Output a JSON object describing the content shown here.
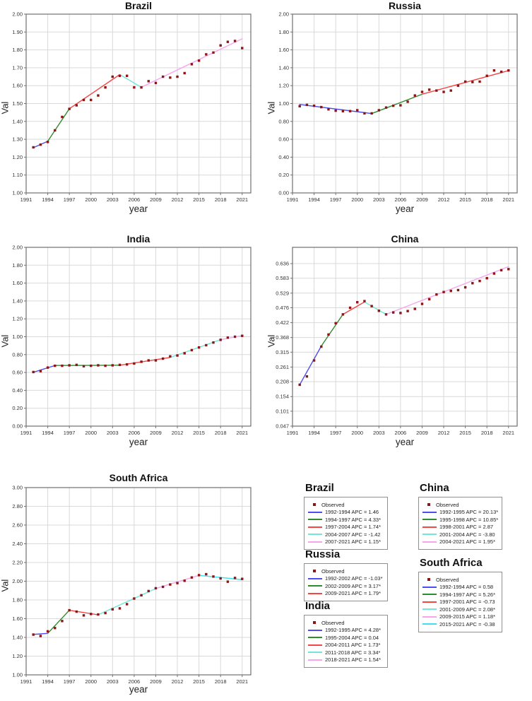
{
  "figure_title": "",
  "colors": {
    "observed": "#8e1515",
    "frame": "#707070",
    "grid": "#d9d9d9",
    "blue": "#4d4df2",
    "green": "#2e8b2e",
    "red": "#f54545",
    "turquoise": "#74e6d8",
    "pink": "#f7a6ee",
    "bright_cyan": "#3fe0f0"
  },
  "chart_data": [
    {
      "key": "brazil",
      "type": "line",
      "title": "Brazil",
      "xlabel": "year",
      "ylabel": "Val",
      "xlim": [
        1991,
        2022.2
      ],
      "ylim": [
        1.0,
        2.0
      ],
      "grid": true,
      "xticks": [
        1991,
        1994,
        1997,
        2000,
        2003,
        2006,
        2009,
        2012,
        2015,
        2018,
        2021
      ],
      "ytick_values": [
        1.0,
        1.1,
        1.2,
        1.3,
        1.4,
        1.5,
        1.6,
        1.7,
        1.8,
        1.9,
        2.0
      ],
      "ytick_labels": [
        "1.00",
        "1.10",
        "1.20",
        "1.30",
        "1.40",
        "1.50",
        "1.60",
        "1.70",
        "1.80",
        "1.90",
        "2.00"
      ],
      "observed_years": [
        1992,
        1993,
        1994,
        1995,
        1996,
        1997,
        1998,
        1999,
        2000,
        2001,
        2002,
        2003,
        2004,
        2005,
        2006,
        2007,
        2008,
        2009,
        2010,
        2011,
        2012,
        2013,
        2014,
        2015,
        2016,
        2017,
        2018,
        2019,
        2020,
        2021
      ],
      "observed_values": [
        1.255,
        1.27,
        1.285,
        1.35,
        1.425,
        1.47,
        1.49,
        1.52,
        1.52,
        1.545,
        1.59,
        1.65,
        1.655,
        1.655,
        1.59,
        1.59,
        1.625,
        1.615,
        1.65,
        1.645,
        1.65,
        1.67,
        1.72,
        1.74,
        1.775,
        1.785,
        1.825,
        1.845,
        1.85,
        1.81
      ],
      "segments": [
        {
          "label": "1992-1994 APC = 1.46",
          "color": "#4d4df2",
          "x1": 1992,
          "y1": 1.253,
          "x2": 1994,
          "y2": 1.289
        },
        {
          "label": "1994-1997 APC = 4.33*",
          "color": "#2e8b2e",
          "x1": 1994,
          "y1": 1.289,
          "x2": 1997,
          "y2": 1.471
        },
        {
          "label": "1997-2004 APC = 1.74*",
          "color": "#f54545",
          "x1": 1997,
          "y1": 1.471,
          "x2": 2004,
          "y2": 1.662
        },
        {
          "label": "2004-2007 APC = -1.42",
          "color": "#74e6d8",
          "x1": 2004,
          "y1": 1.662,
          "x2": 2007,
          "y2": 1.591
        },
        {
          "label": "2007-2021 APC = 1.15*",
          "color": "#f7a6ee",
          "x1": 2007,
          "y1": 1.591,
          "x2": 2021,
          "y2": 1.862
        }
      ]
    },
    {
      "key": "russia",
      "type": "line",
      "title": "Russia",
      "xlabel": "year",
      "ylabel": "Val",
      "xlim": [
        1991,
        2022.2
      ],
      "ylim": [
        0.0,
        2.0
      ],
      "grid": true,
      "xticks": [
        1991,
        1994,
        1997,
        2000,
        2003,
        2006,
        2009,
        2012,
        2015,
        2018,
        2021
      ],
      "ytick_values": [
        0.0,
        0.2,
        0.4,
        0.6,
        0.8,
        1.0,
        1.2,
        1.4,
        1.6,
        1.8,
        2.0
      ],
      "ytick_labels": [
        "0.00",
        "0.20",
        "0.40",
        "0.60",
        "0.80",
        "1.00",
        "1.20",
        "1.40",
        "1.60",
        "1.80",
        "2.00"
      ],
      "observed_years": [
        1992,
        1993,
        1994,
        1995,
        1996,
        1997,
        1998,
        1999,
        2000,
        2001,
        2002,
        2003,
        2004,
        2005,
        2006,
        2007,
        2008,
        2009,
        2010,
        2011,
        2012,
        2013,
        2014,
        2015,
        2016,
        2017,
        2018,
        2019,
        2020,
        2021
      ],
      "observed_values": [
        0.97,
        0.985,
        0.975,
        0.96,
        0.935,
        0.92,
        0.915,
        0.915,
        0.925,
        0.89,
        0.89,
        0.925,
        0.955,
        0.975,
        0.98,
        1.02,
        1.09,
        1.13,
        1.155,
        1.145,
        1.13,
        1.145,
        1.2,
        1.245,
        1.24,
        1.245,
        1.31,
        1.37,
        1.355,
        1.37
      ],
      "segments": [
        {
          "label": "1992-2002 APC = -1.03*",
          "color": "#4d4df2",
          "x1": 1992,
          "y1": 0.99,
          "x2": 2002,
          "y2": 0.888
        },
        {
          "label": "2002-2009 APC = 3.17*",
          "color": "#2e8b2e",
          "x1": 2002,
          "y1": 0.888,
          "x2": 2009,
          "y2": 1.104
        },
        {
          "label": "2009-2021 APC = 1.79*",
          "color": "#f54545",
          "x1": 2009,
          "y1": 1.104,
          "x2": 2021,
          "y2": 1.368
        }
      ]
    },
    {
      "key": "india",
      "type": "line",
      "title": "India",
      "xlabel": "year",
      "ylabel": "Val",
      "xlim": [
        1991,
        2022.2
      ],
      "ylim": [
        0.0,
        2.0
      ],
      "grid": true,
      "xticks": [
        1991,
        1994,
        1997,
        2000,
        2003,
        2006,
        2009,
        2012,
        2015,
        2018,
        2021
      ],
      "ytick_values": [
        0.0,
        0.2,
        0.4,
        0.6,
        0.8,
        1.0,
        1.2,
        1.4,
        1.6,
        1.8,
        2.0
      ],
      "ytick_labels": [
        "0.00",
        "0.20",
        "0.40",
        "0.60",
        "0.80",
        "1.00",
        "1.20",
        "1.40",
        "1.60",
        "1.80",
        "2.00"
      ],
      "observed_years": [
        1992,
        1993,
        1994,
        1995,
        1996,
        1997,
        1998,
        1999,
        2000,
        2001,
        2002,
        2003,
        2004,
        2005,
        2006,
        2007,
        2008,
        2009,
        2010,
        2011,
        2012,
        2013,
        2014,
        2015,
        2016,
        2017,
        2018,
        2019,
        2020,
        2021
      ],
      "observed_values": [
        0.605,
        0.615,
        0.655,
        0.675,
        0.675,
        0.68,
        0.685,
        0.67,
        0.675,
        0.68,
        0.675,
        0.68,
        0.685,
        0.69,
        0.7,
        0.72,
        0.735,
        0.735,
        0.755,
        0.78,
        0.79,
        0.815,
        0.85,
        0.88,
        0.905,
        0.935,
        0.965,
        0.99,
        1.0,
        1.01
      ],
      "segments": [
        {
          "label": "1992-1995 APC = 4.28*",
          "color": "#4d4df2",
          "x1": 1992,
          "y1": 0.602,
          "x2": 1995,
          "y2": 0.678
        },
        {
          "label": "1995-2004 APC = 0.04",
          "color": "#2e8b2e",
          "x1": 1995,
          "y1": 0.678,
          "x2": 2004,
          "y2": 0.681
        },
        {
          "label": "2004-2011 APC = 1.73*",
          "color": "#f54545",
          "x1": 2004,
          "y1": 0.681,
          "x2": 2011,
          "y2": 0.768
        },
        {
          "label": "2011-2018 APC = 3.34*",
          "color": "#74e6d8",
          "x1": 2011,
          "y1": 0.768,
          "x2": 2018,
          "y2": 0.967
        },
        {
          "label": "2018-2021 APC = 1.54*",
          "color": "#f7a6ee",
          "x1": 2018,
          "y1": 0.967,
          "x2": 2021,
          "y2": 1.012
        }
      ]
    },
    {
      "key": "china",
      "type": "line",
      "title": "China",
      "xlabel": "year",
      "ylabel": "Val",
      "xlim": [
        1991,
        2022.2
      ],
      "ylim": [
        0.047,
        0.695
      ],
      "grid": true,
      "xticks": [
        1991,
        1994,
        1997,
        2000,
        2003,
        2006,
        2009,
        2012,
        2015,
        2018,
        2021
      ],
      "ytick_values": [
        0.047,
        0.101,
        0.154,
        0.208,
        0.261,
        0.315,
        0.368,
        0.422,
        0.476,
        0.529,
        0.583,
        0.636
      ],
      "ytick_labels": [
        "0.047",
        "0.101",
        "0.154",
        "0.208",
        "0.261",
        "0.315",
        "0.368",
        "0.422",
        "0.476",
        "0.529",
        "0.583",
        "0.636"
      ],
      "observed_years": [
        1992,
        1993,
        1994,
        1995,
        1996,
        1997,
        1998,
        1999,
        2000,
        2001,
        2002,
        2003,
        2004,
        2005,
        2006,
        2007,
        2008,
        2009,
        2010,
        2011,
        2012,
        2013,
        2014,
        2015,
        2016,
        2017,
        2018,
        2019,
        2020,
        2021
      ],
      "observed_values": [
        0.197,
        0.227,
        0.285,
        0.335,
        0.379,
        0.42,
        0.452,
        0.476,
        0.496,
        0.5,
        0.482,
        0.465,
        0.452,
        0.459,
        0.457,
        0.464,
        0.472,
        0.49,
        0.507,
        0.524,
        0.533,
        0.537,
        0.54,
        0.55,
        0.565,
        0.573,
        0.583,
        0.6,
        0.612,
        0.616
      ],
      "segments": [
        {
          "label": "1992-1995 APC = 20.13*",
          "color": "#4d4df2",
          "x1": 1992,
          "y1": 0.197,
          "x2": 1995,
          "y2": 0.337
        },
        {
          "label": "1995-1998 APC = 10.85*",
          "color": "#2e8b2e",
          "x1": 1995,
          "y1": 0.337,
          "x2": 1998,
          "y2": 0.452
        },
        {
          "label": "1998-2001 APC = 2.87",
          "color": "#f54545",
          "x1": 1998,
          "y1": 0.452,
          "x2": 2001,
          "y2": 0.497
        },
        {
          "label": "2001-2004 APC = -3.80",
          "color": "#74e6d8",
          "x1": 2001,
          "y1": 0.497,
          "x2": 2004,
          "y2": 0.452
        },
        {
          "label": "2004-2021 APC = 1.95*",
          "color": "#f7a6ee",
          "x1": 2004,
          "y1": 0.452,
          "x2": 2021,
          "y2": 0.625
        }
      ]
    },
    {
      "key": "south_africa",
      "type": "line",
      "title": "South Africa",
      "xlabel": "year",
      "ylabel": "Val",
      "xlim": [
        1991,
        2022.2
      ],
      "ylim": [
        1.0,
        3.0
      ],
      "grid": true,
      "xticks": [
        1991,
        1994,
        1997,
        2000,
        2003,
        2006,
        2009,
        2012,
        2015,
        2018,
        2021
      ],
      "ytick_values": [
        1.0,
        1.2,
        1.4,
        1.6,
        1.8,
        2.0,
        2.2,
        2.4,
        2.6,
        2.8,
        3.0
      ],
      "ytick_labels": [
        "1.00",
        "1.20",
        "1.40",
        "1.60",
        "1.80",
        "2.00",
        "2.20",
        "2.40",
        "2.60",
        "2.80",
        "3.00"
      ],
      "observed_years": [
        1992,
        1993,
        1994,
        1995,
        1996,
        1997,
        1998,
        1999,
        2000,
        2001,
        2002,
        2003,
        2004,
        2005,
        2006,
        2007,
        2008,
        2009,
        2010,
        2011,
        2012,
        2013,
        2014,
        2015,
        2016,
        2017,
        2018,
        2019,
        2020,
        2021
      ],
      "observed_values": [
        1.43,
        1.415,
        1.465,
        1.5,
        1.575,
        1.69,
        1.675,
        1.635,
        1.65,
        1.645,
        1.66,
        1.7,
        1.71,
        1.755,
        1.815,
        1.85,
        1.895,
        1.925,
        1.94,
        1.965,
        1.98,
        2.005,
        2.04,
        2.065,
        2.075,
        2.05,
        2.03,
        1.995,
        2.035,
        2.025
      ],
      "segments": [
        {
          "label": "1992-1994 APC = 0.58",
          "color": "#4d4df2",
          "x1": 1992,
          "y1": 1.432,
          "x2": 1994,
          "y2": 1.443
        },
        {
          "label": "1994-1997 APC = 5.26*",
          "color": "#2e8b2e",
          "x1": 1994,
          "y1": 1.443,
          "x2": 1997,
          "y2": 1.69
        },
        {
          "label": "1997-2001 APC = -0.73",
          "color": "#f54545",
          "x1": 1997,
          "y1": 1.69,
          "x2": 2001,
          "y2": 1.641
        },
        {
          "label": "2001-2009 APC = 2.08*",
          "color": "#74e6d8",
          "x1": 2001,
          "y1": 1.641,
          "x2": 2009,
          "y2": 1.922
        },
        {
          "label": "2009-2015 APC = 1.18*",
          "color": "#f7a6ee",
          "x1": 2009,
          "y1": 1.922,
          "x2": 2015,
          "y2": 2.063
        },
        {
          "label": "2015-2021 APC = -0.38",
          "color": "#3fe0f0",
          "x1": 2015,
          "y1": 2.063,
          "x2": 2021,
          "y2": 2.017
        }
      ]
    }
  ],
  "legends": [
    {
      "key": "brazil",
      "title": "Brazil",
      "observed_label": "Observed",
      "entries": [
        {
          "color": "#4d4df2",
          "label": "1992-1994 APC  =  1.46"
        },
        {
          "color": "#2e8b2e",
          "label": "1994-1997 APC  =  4.33*"
        },
        {
          "color": "#f54545",
          "label": "1997-2004 APC  =  1.74*"
        },
        {
          "color": "#74e6d8",
          "label": "2004-2007 APC  = -1.42"
        },
        {
          "color": "#f7a6ee",
          "label": "2007-2021 APC  =  1.15*"
        }
      ]
    },
    {
      "key": "russia",
      "title": "Russia",
      "observed_label": "Observed",
      "entries": [
        {
          "color": "#4d4df2",
          "label": "1992-2002 APC  = -1.03*"
        },
        {
          "color": "#2e8b2e",
          "label": "2002-2009 APC  =  3.17*"
        },
        {
          "color": "#f54545",
          "label": "2009-2021 APC  =  1.79*"
        }
      ]
    },
    {
      "key": "india",
      "title": "India",
      "observed_label": "Observed",
      "entries": [
        {
          "color": "#4d4df2",
          "label": "1992-1995 APC  =  4.28*"
        },
        {
          "color": "#2e8b2e",
          "label": "1995-2004 APC  =  0.04"
        },
        {
          "color": "#f54545",
          "label": "2004-2011 APC  =  1.73*"
        },
        {
          "color": "#74e6d8",
          "label": "2011-2018 APC  =  3.34*"
        },
        {
          "color": "#f7a6ee",
          "label": "2018-2021 APC  =  1.54*"
        }
      ]
    },
    {
      "key": "china",
      "title": "China",
      "observed_label": "Observed",
      "entries": [
        {
          "color": "#4d4df2",
          "label": "1992-1995 APC  =  20.13*"
        },
        {
          "color": "#2e8b2e",
          "label": "1995-1998 APC  =  10.85*"
        },
        {
          "color": "#f54545",
          "label": "1998-2001 APC  =  2.87"
        },
        {
          "color": "#74e6d8",
          "label": "2001-2004 APC  = -3.80"
        },
        {
          "color": "#f7a6ee",
          "label": "2004-2021 APC  =  1.95*"
        }
      ]
    },
    {
      "key": "south_africa",
      "title": "South Africa",
      "observed_label": "Observed",
      "entries": [
        {
          "color": "#4d4df2",
          "label": "1992-1994 APC  =  0.58"
        },
        {
          "color": "#2e8b2e",
          "label": "1994-1997 APC  =  5.26*"
        },
        {
          "color": "#f54545",
          "label": "1997-2001 APC  = -0.73"
        },
        {
          "color": "#74e6d8",
          "label": "2001-2009 APC  =  2.08*"
        },
        {
          "color": "#f7a6ee",
          "label": "2009-2015 APC  =  1.18*"
        },
        {
          "color": "#3fe0f0",
          "label": "2015-2021 APC  = -0.38"
        }
      ]
    }
  ]
}
